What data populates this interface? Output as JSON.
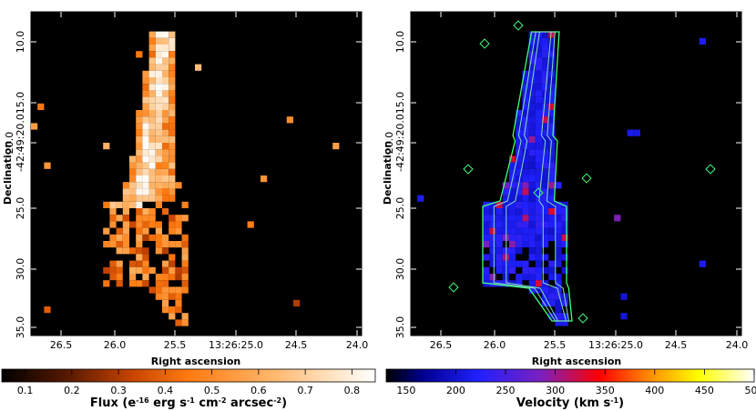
{
  "chart_data": [
    {
      "type": "heatmap",
      "panel": "left",
      "xlabel": "Right ascension",
      "ylabel": "Declination",
      "x_ticks": [
        "26.5",
        "26.0",
        "25.5",
        "13:26:25.0",
        "24.5",
        "24.0"
      ],
      "y_ticks": [
        "10.0",
        "15.0",
        "-42:49:20.0",
        "25.0",
        "30.0",
        "35.0"
      ],
      "y_tick_extra": "20.0",
      "colormap": "orange-heat",
      "colorbar": {
        "label_main": "Flux (e",
        "label_sup1": "-16",
        "label_mid": " erg s",
        "label_sup2": "-1",
        "label_mid2": " cm",
        "label_sup3": "-2",
        "label_mid3": " arcsec",
        "label_sup4": "-2",
        "label_end": ")",
        "ticks": [
          "0.1",
          "0.2",
          "0.3",
          "0.4",
          "0.5",
          "0.6",
          "0.7",
          "0.8"
        ],
        "range": [
          0.05,
          0.85
        ]
      }
    },
    {
      "type": "heatmap",
      "panel": "right",
      "xlabel": "Right ascension",
      "ylabel": "Declination",
      "x_ticks": [
        "26.5",
        "26.0",
        "25.5",
        "13:26:25.0",
        "24.5",
        "24.0"
      ],
      "y_ticks": [
        "10.0",
        "15.0",
        "-42:49:20.0",
        "25.0",
        "30.0",
        "35.0"
      ],
      "y_tick_extra": "20.0",
      "colormap": "blue-red-yellow",
      "contours": true,
      "colorbar": {
        "label_main": "Velocity (km s",
        "label_sup1": "-1",
        "label_end": ")",
        "ticks": [
          "150",
          "200",
          "250",
          "300",
          "350",
          "400",
          "450",
          "500"
        ],
        "range": [
          130,
          500
        ]
      }
    }
  ],
  "colors": {
    "background": "#000000",
    "contour": "#40ff80",
    "contour_inner": "#80e0c0"
  }
}
